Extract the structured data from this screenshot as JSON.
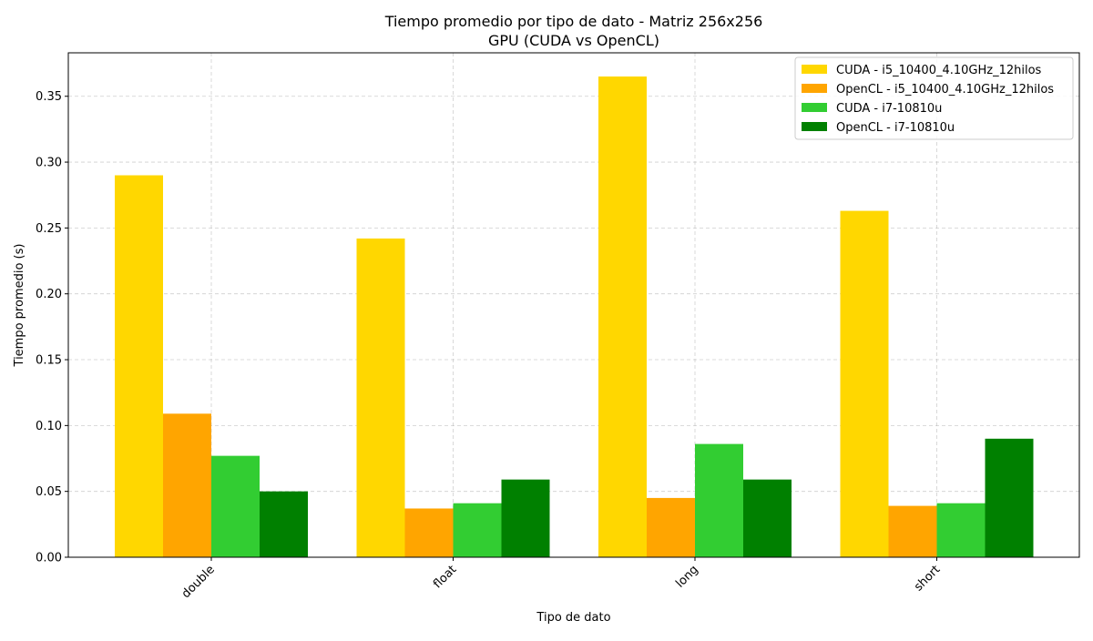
{
  "chart_data": {
    "type": "bar",
    "title": "Tiempo promedio por tipo de dato - Matriz 256x256",
    "subtitle": "GPU (CUDA vs OpenCL)",
    "xlabel": "Tipo de dato",
    "ylabel": "Tiempo promedio (s)",
    "categories": [
      "double",
      "float",
      "long",
      "short"
    ],
    "ylim": [
      0,
      0.383
    ],
    "yticks": [
      "0.00",
      "0.05",
      "0.10",
      "0.15",
      "0.20",
      "0.25",
      "0.30",
      "0.35"
    ],
    "grid": true,
    "legend_position": "top-right",
    "series": [
      {
        "name": "CUDA - i5_10400_4.10GHz_12hilos",
        "color": "#FFD700",
        "values": [
          0.29,
          0.242,
          0.365,
          0.263
        ]
      },
      {
        "name": "OpenCL - i5_10400_4.10GHz_12hilos",
        "color": "#FFA500",
        "values": [
          0.109,
          0.037,
          0.045,
          0.039
        ]
      },
      {
        "name": "CUDA - i7-10810u",
        "color": "#32CD32",
        "values": [
          0.077,
          0.041,
          0.086,
          0.041
        ]
      },
      {
        "name": "OpenCL - i7-10810u",
        "color": "#008000",
        "values": [
          0.05,
          0.059,
          0.059,
          0.09
        ]
      }
    ]
  }
}
